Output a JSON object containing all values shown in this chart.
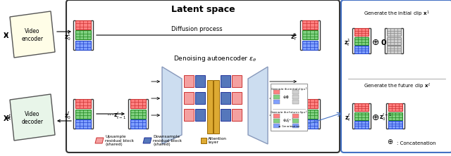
{
  "title": "Latent space",
  "bg_color": "#ffffff",
  "main_box_color": "#333333",
  "right_box_color": "#4472c4",
  "encoder_color": "#fffde7",
  "decoder_color": "#e8f5e9",
  "red_color": "#ff8080",
  "green_color": "#80d080",
  "blue_color": "#80a0ff",
  "gray_color": "#d0d0d0",
  "pink_color": "#f4a0a0",
  "navy_color": "#5577bb",
  "gold_color": "#ddaa33",
  "unet_bg": "#ccddf0",
  "unet_edge": "#8899bb",
  "diffusion_label": "Diffusion process",
  "denoising_label": "Denoising autoencoder $\\epsilon_\\theta$",
  "legend_upsample": "Upsample\nresidual block\n(shared)",
  "legend_downsample": "Downsample\nresidual block\n(shared)",
  "legend_attention": "Attention\nlayer",
  "concat_label": ": Concatenation"
}
